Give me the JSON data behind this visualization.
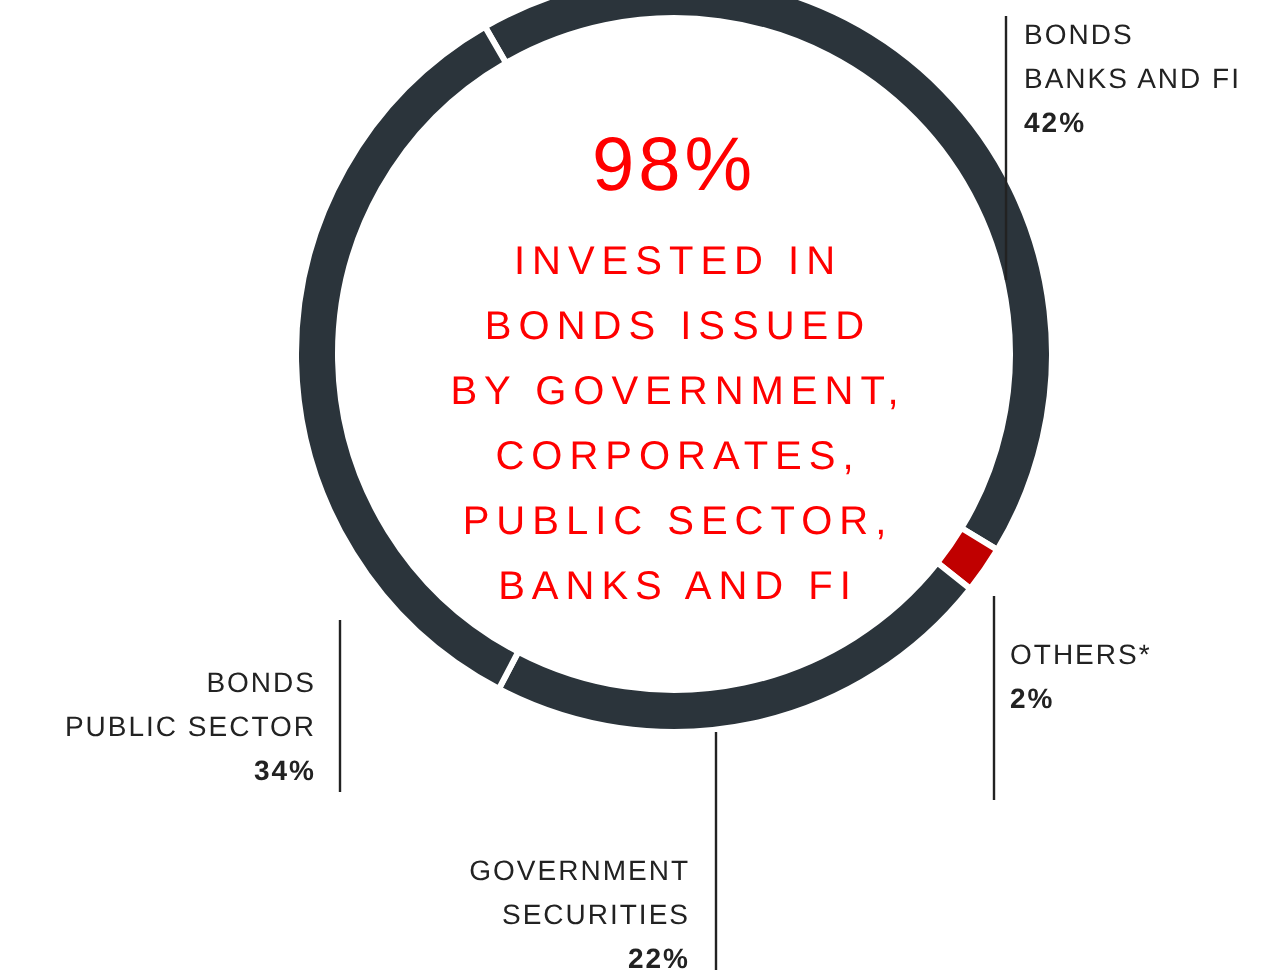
{
  "chart_data": {
    "type": "donut",
    "categories": [
      "BONDS BANKS AND FI",
      "OTHERS*",
      "GOVERNMENT SECURITIES",
      "BONDS PUBLIC SECTOR"
    ],
    "values": [
      42,
      2,
      22,
      34
    ],
    "colors": [
      "#2b343b",
      "#c00000",
      "#2b343b",
      "#2b343b"
    ],
    "value_labels": [
      "42%",
      "2%",
      "22%",
      "34%"
    ],
    "annotations": [
      "98%",
      "INVESTED IN BONDS ISSUED BY GOVERNMENT, CORPORATES, PUBLIC SECTOR, BANKS AND FI"
    ]
  }
}
